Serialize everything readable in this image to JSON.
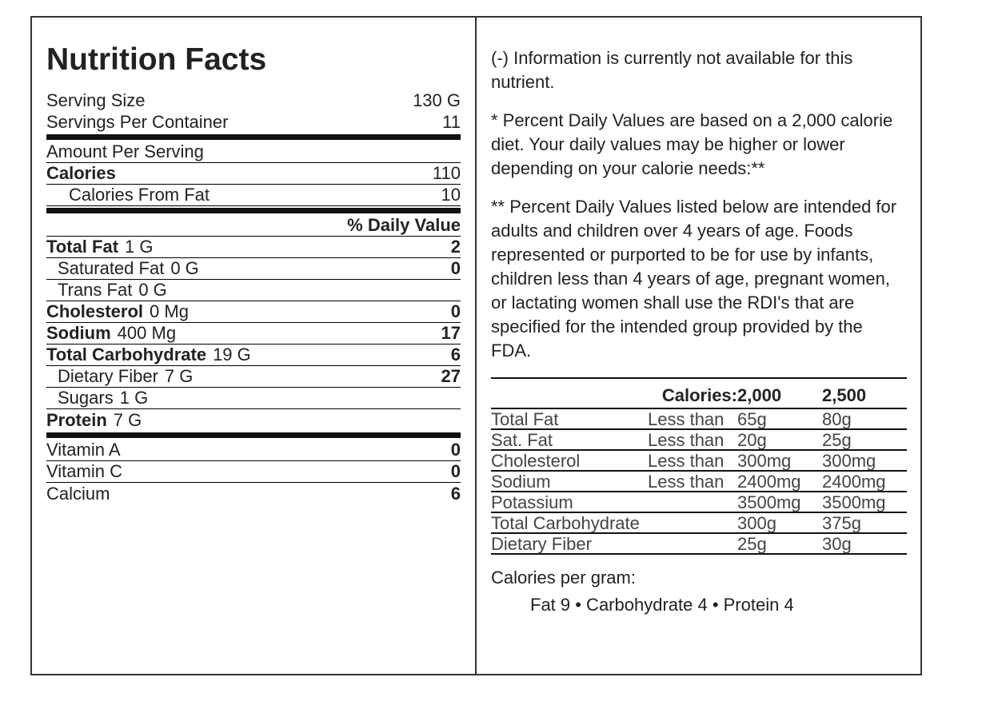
{
  "label": {
    "title": "Nutrition Facts",
    "serving": [
      {
        "label": "Serving Size",
        "value": "130 G"
      },
      {
        "label": "Servings Per Container",
        "value": "11"
      }
    ],
    "amount_header": "Amount Per Serving",
    "calories": {
      "label": "Calories",
      "value": "110"
    },
    "calories_from_fat": {
      "label": "Calories From Fat",
      "value": "10"
    },
    "daily_value_header": "% Daily Value",
    "nutrients": [
      {
        "name": "Total Fat",
        "amount": "1 G",
        "dv": "2",
        "bold": true,
        "indent": false
      },
      {
        "name": "Saturated Fat",
        "amount": "0 G",
        "dv": "0",
        "bold": false,
        "indent": true
      },
      {
        "name": "Trans Fat",
        "amount": "0 G",
        "bold": false,
        "indent": true
      },
      {
        "name": "Cholesterol",
        "amount": "0 Mg",
        "dv": "0",
        "bold": true,
        "indent": false
      },
      {
        "name": "Sodium",
        "amount": "400 Mg",
        "dv": "17",
        "bold": true,
        "indent": false
      },
      {
        "name": "Total Carbohydrate",
        "amount": "19 G",
        "dv": "6",
        "bold": true,
        "indent": false
      },
      {
        "name": "Dietary Fiber",
        "amount": "7 G",
        "dv": "27",
        "bold": false,
        "indent": true
      },
      {
        "name": "Sugars",
        "amount": "1 G",
        "bold": false,
        "indent": true
      },
      {
        "name": "Protein",
        "amount": "7 G",
        "bold": true,
        "indent": false
      }
    ],
    "vitamins": [
      {
        "name": "Vitamin A",
        "dv": "0"
      },
      {
        "name": "Vitamin C",
        "dv": "0"
      },
      {
        "name": "Calcium",
        "dv": "6"
      }
    ]
  },
  "notes": [
    "(-) Information is currently not available for this nutrient.",
    "* Percent Daily Values are based on a 2,000 calorie diet. Your daily values may be higher or lower depending on your calorie needs:**",
    "** Percent Daily Values listed below are intended for adults and children over 4 years of age. Foods represented or purported to be for use by infants, children less than 4 years of age, pregnant women, or lactating women shall use the RDI's that are specified for the intended group provided by the FDA."
  ],
  "reference_table": {
    "header": [
      "Calories:",
      "2,000",
      "2,500"
    ],
    "rows": [
      [
        "Total Fat",
        "Less than",
        "65g",
        "80g"
      ],
      [
        "Sat. Fat",
        "Less than",
        "20g",
        "25g"
      ],
      [
        "Cholesterol",
        "Less than",
        "300mg",
        "300mg"
      ],
      [
        "Sodium",
        "Less than",
        "2400mg",
        "2400mg"
      ],
      [
        "Potassium",
        null,
        "3500mg",
        "3500mg"
      ],
      [
        "Total Carbohydrate",
        null,
        "300g",
        "375g"
      ],
      [
        "Dietary Fiber",
        null,
        "25g",
        "30g"
      ]
    ]
  },
  "calories_per_gram": {
    "title": "Calories per gram:",
    "text": "Fat 9 • Carbohydrate 4 • Protein 4"
  }
}
